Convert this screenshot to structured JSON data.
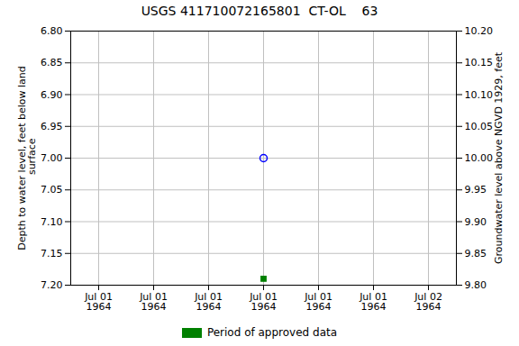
{
  "chart_data": {
    "type": "scatter",
    "title": "USGS 411710072165801  CT-OL    63",
    "categories": [
      "Jul 01\n1964",
      "Jul 01\n1964",
      "Jul 01\n1964",
      "Jul 01\n1964",
      "Jul 01\n1964",
      "Jul 01\n1964",
      "Jul 02\n1964"
    ],
    "ylabel": "Depth to water level, feet below land\n surface",
    "y2label": "Groundwater level above NGVD 1929, feet",
    "ylim": [
      7.2,
      6.8
    ],
    "yticks": [
      {
        "value": 6.8,
        "label": "6.80"
      },
      {
        "value": 6.85,
        "label": "6.85"
      },
      {
        "value": 6.9,
        "label": "6.90"
      },
      {
        "value": 6.95,
        "label": "6.95"
      },
      {
        "value": 7.0,
        "label": "7.00"
      },
      {
        "value": 7.05,
        "label": "7.05"
      },
      {
        "value": 7.1,
        "label": "7.10"
      },
      {
        "value": 7.15,
        "label": "7.15"
      },
      {
        "value": 7.2,
        "label": "7.20"
      }
    ],
    "y2lim": [
      9.8,
      10.2
    ],
    "y2ticks": [
      {
        "value": 10.2,
        "label": "10.20"
      },
      {
        "value": 10.15,
        "label": "10.15"
      },
      {
        "value": 10.1,
        "label": "10.10"
      },
      {
        "value": 10.05,
        "label": "10.05"
      },
      {
        "value": 10.0,
        "label": "10.00"
      },
      {
        "value": 9.95,
        "label": "9.95"
      },
      {
        "value": 9.9,
        "label": "9.90"
      },
      {
        "value": 9.85,
        "label": "9.85"
      },
      {
        "value": 9.8,
        "label": "9.80"
      }
    ],
    "grid": true,
    "legend": "bottom",
    "series": [
      {
        "color": "blue",
        "marker": "circle-open",
        "values": [
          null,
          null,
          null,
          7.0,
          null,
          null,
          null
        ]
      },
      {
        "name": "Period of approved data",
        "color": "green",
        "marker": "square",
        "values": [
          null,
          null,
          null,
          7.19,
          null,
          null,
          null
        ]
      }
    ]
  }
}
